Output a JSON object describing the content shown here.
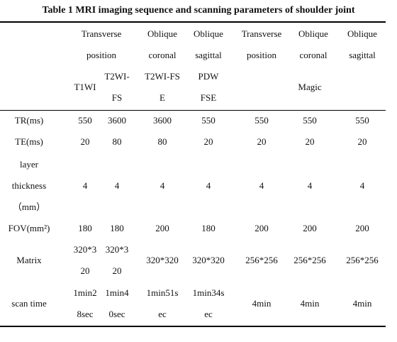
{
  "title": "Table 1 MRI imaging sequence and scanning parameters of shoulder joint",
  "header": {
    "groups": [
      [
        "Transverse",
        "position"
      ],
      [
        "Oblique",
        "coronal"
      ],
      [
        "Oblique",
        "sagittal"
      ],
      [
        "Transverse",
        "position"
      ],
      [
        "Oblique",
        "coronal"
      ],
      [
        "Oblique",
        "sagittal"
      ]
    ],
    "sequences": [
      [
        "T1WI"
      ],
      [
        "T2WI-",
        "FS"
      ],
      [
        "T2WI-FS",
        "E"
      ],
      [
        "PDW",
        "FSE"
      ],
      [
        "Magic"
      ]
    ]
  },
  "rows": [
    {
      "label": [
        "TR(ms)"
      ],
      "values": [
        [
          "550"
        ],
        [
          "3600"
        ],
        [
          "3600"
        ],
        [
          "550"
        ],
        [
          "550"
        ],
        [
          "550"
        ],
        [
          "550"
        ]
      ]
    },
    {
      "label": [
        "TE(ms)"
      ],
      "values": [
        [
          "20"
        ],
        [
          "80"
        ],
        [
          "80"
        ],
        [
          "20"
        ],
        [
          "20"
        ],
        [
          "20"
        ],
        [
          "20"
        ]
      ]
    },
    {
      "label": [
        "layer",
        "thickness",
        "（mm）"
      ],
      "values": [
        [
          "4"
        ],
        [
          "4"
        ],
        [
          "4"
        ],
        [
          "4"
        ],
        [
          "4"
        ],
        [
          "4"
        ],
        [
          "4"
        ]
      ]
    },
    {
      "label": [
        "FOV(mm²)"
      ],
      "values": [
        [
          "180"
        ],
        [
          "180"
        ],
        [
          "200"
        ],
        [
          "180"
        ],
        [
          "200"
        ],
        [
          "200"
        ],
        [
          "200"
        ]
      ]
    },
    {
      "label": [
        "Matrix"
      ],
      "values": [
        [
          "320*3",
          "20"
        ],
        [
          "320*3",
          "20"
        ],
        [
          "320*320"
        ],
        [
          "320*320"
        ],
        [
          "256*256"
        ],
        [
          "256*256"
        ],
        [
          "256*256"
        ]
      ]
    },
    {
      "label": [
        "scan time"
      ],
      "values": [
        [
          "1min2",
          "8sec"
        ],
        [
          "1min4",
          "0sec"
        ],
        [
          "1min51s",
          "ec"
        ],
        [
          "1min34s",
          "ec"
        ],
        [
          "4min"
        ],
        [
          "4min"
        ],
        [
          "4min"
        ]
      ]
    }
  ]
}
